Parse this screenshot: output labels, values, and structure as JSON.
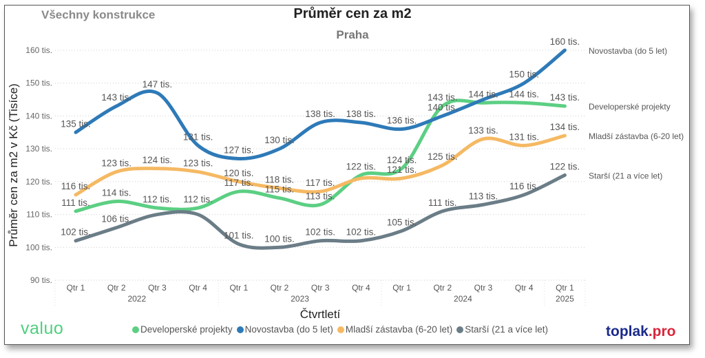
{
  "header": {
    "filter_label": "Všechny konstrukce",
    "title": "Průměr cen za m2",
    "city": "Praha"
  },
  "branding": {
    "left_logo": "valuo",
    "right_logo_main": "toplak",
    "right_logo_suffix": ".pro"
  },
  "chart_data": {
    "type": "line",
    "title": "Průměr cen za m2",
    "subtitle": "Praha",
    "xlabel": "Čtvrtletí",
    "ylabel": "Průměr cen za m2 v Kč (Tisíce)",
    "ylim": [
      90,
      160
    ],
    "y_ticks": [
      90,
      100,
      110,
      120,
      130,
      140,
      150,
      160
    ],
    "y_tick_labels": [
      "90 tis.",
      "100 tis.",
      "110 tis.",
      "120 tis.",
      "130 tis.",
      "140 tis.",
      "150 tis.",
      "160 tis."
    ],
    "categories": [
      "Qtr 1",
      "Qtr 2",
      "Qtr 3",
      "Qtr 4",
      "Qtr 1",
      "Qtr 2",
      "Qtr 3",
      "Qtr 4",
      "Qtr 1",
      "Qtr 2",
      "Qtr 3",
      "Qtr 4",
      "Qtr 1"
    ],
    "years": [
      {
        "label": "2022",
        "count": 4
      },
      {
        "label": "2023",
        "count": 4
      },
      {
        "label": "2024",
        "count": 4
      },
      {
        "label": "2025",
        "count": 1
      }
    ],
    "grid": true,
    "legend_position": "bottom",
    "value_suffix": " tis.",
    "series": [
      {
        "name": "Developerské projekty",
        "end_label": "Developerské projekty",
        "color": "#5ccf83",
        "values": [
          111,
          114,
          112,
          112,
          117,
          115,
          113,
          122,
          124,
          143,
          144,
          144,
          143
        ],
        "show_labels": [
          true,
          true,
          true,
          true,
          true,
          true,
          true,
          true,
          true,
          true,
          true,
          true,
          true
        ]
      },
      {
        "name": "Novostavba (do 5 let)",
        "end_label": "Novostavba (do 5 let)",
        "color": "#2e7ab8",
        "values": [
          135,
          143,
          147,
          131,
          127,
          130,
          138,
          138,
          136,
          140,
          145,
          150,
          160
        ],
        "show_labels": [
          true,
          true,
          true,
          true,
          true,
          true,
          true,
          true,
          true,
          true,
          false,
          true,
          true
        ]
      },
      {
        "name": "Mladší zástavba (6-20 let)",
        "end_label": "Mladší zástavba (6-20 let)",
        "color": "#f5b963",
        "values": [
          116,
          123,
          124,
          123,
          120,
          118,
          117,
          121,
          121,
          125,
          133,
          131,
          134
        ],
        "show_labels": [
          true,
          true,
          true,
          true,
          true,
          true,
          true,
          false,
          true,
          true,
          true,
          true,
          true
        ]
      },
      {
        "name": "Starší (21 a více let)",
        "end_label": "Starší (21 a více let)",
        "color": "#6b7d87",
        "values": [
          102,
          106,
          110,
          110,
          101,
          100,
          102,
          102,
          105,
          111,
          113,
          116,
          122
        ],
        "show_labels": [
          true,
          true,
          false,
          false,
          true,
          true,
          true,
          true,
          true,
          true,
          true,
          true,
          true
        ]
      }
    ]
  }
}
